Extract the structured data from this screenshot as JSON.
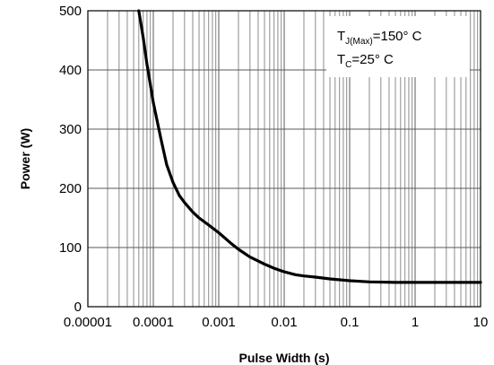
{
  "chart_data": {
    "type": "line",
    "title": "",
    "xlabel": "Pulse Width (s)",
    "ylabel": "Power (W)",
    "xscale": "log",
    "xlim": [
      1e-05,
      10
    ],
    "ylim": [
      0,
      500
    ],
    "grid": true,
    "legend": "none",
    "x_tick_labels": [
      "0.00001",
      "0.0001",
      "0.001",
      "0.01",
      "0.1",
      "1",
      "10"
    ],
    "y_tick_labels": [
      "0",
      "100",
      "200",
      "300",
      "400",
      "500"
    ],
    "annotation": {
      "line1": {
        "main": "T",
        "sub": "J(Max)",
        "rest": "=150° C"
      },
      "line2": {
        "main": "T",
        "sub": "C",
        "rest": "=25° C"
      }
    },
    "series": [
      {
        "color": "#000000",
        "x": [
          6e-05,
          7e-05,
          8e-05,
          0.0001,
          0.00013,
          0.00016,
          0.0002,
          0.00025,
          0.0003,
          0.0004,
          0.0005,
          0.0007,
          0.001,
          0.0015,
          0.002,
          0.003,
          0.005,
          0.007,
          0.01,
          0.015,
          0.02,
          0.03,
          0.05,
          0.1,
          0.2,
          0.5,
          1,
          2,
          5,
          10
        ],
        "y": [
          500,
          455,
          410,
          345,
          285,
          240,
          210,
          188,
          176,
          160,
          150,
          138,
          125,
          108,
          97,
          84,
          72,
          65,
          59,
          54,
          52,
          50,
          47,
          44,
          42,
          41,
          41,
          41,
          41,
          41
        ]
      }
    ]
  }
}
